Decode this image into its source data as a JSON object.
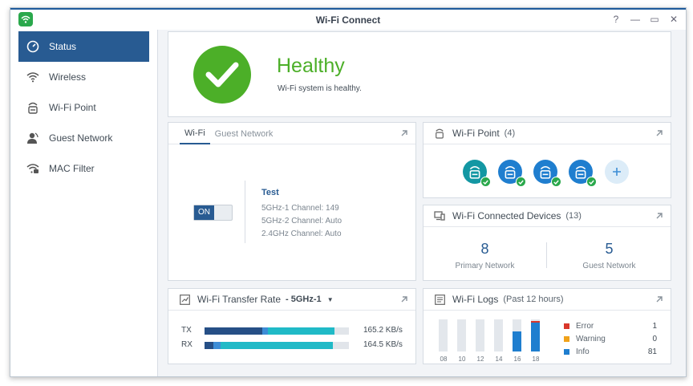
{
  "window": {
    "title": "Wi-Fi Connect"
  },
  "sidebar": {
    "items": [
      {
        "label": "Status"
      },
      {
        "label": "Wireless"
      },
      {
        "label": "Wi-Fi Point"
      },
      {
        "label": "Guest Network"
      },
      {
        "label": "MAC Filter"
      }
    ]
  },
  "health": {
    "title": "Healthy",
    "message": "Wi-Fi system is healthy."
  },
  "wifi_card": {
    "tabs": [
      "Wi-Fi",
      "Guest Network"
    ],
    "toggle": "ON",
    "ssid": "Test",
    "channels": [
      {
        "label": "5GHz-1 Channel:",
        "value": "149"
      },
      {
        "label": "5GHz-2 Channel:",
        "value": "Auto"
      },
      {
        "label": "2.4GHz Channel:",
        "value": "Auto"
      }
    ]
  },
  "wifi_point": {
    "title": "Wi-Fi Point",
    "count": "(4)",
    "points": 4,
    "colors": [
      "#1397a3",
      "#1f7ecf",
      "#1f7ecf",
      "#1f7ecf"
    ]
  },
  "devices": {
    "title": "Wi-Fi Connected Devices",
    "count": "(13)",
    "primary": {
      "value": "8",
      "label": "Primary Network"
    },
    "guest": {
      "value": "5",
      "label": "Guest Network"
    }
  },
  "transfer": {
    "title": "Wi-Fi Transfer Rate",
    "band": "- 5GHz-1",
    "rows": [
      {
        "label": "TX",
        "value": "165.2 KB/s",
        "segments": [
          {
            "frac": 0.4,
            "color": "#264f86"
          },
          {
            "frac": 0.04,
            "color": "#3d8dd6"
          },
          {
            "frac": 0.46,
            "color": "#20bac7"
          }
        ]
      },
      {
        "label": "RX",
        "value": "164.5 KB/s",
        "segments": [
          {
            "frac": 0.06,
            "color": "#264f86"
          },
          {
            "frac": 0.05,
            "color": "#3d8dd6"
          },
          {
            "frac": 0.78,
            "color": "#20bac7"
          }
        ]
      }
    ]
  },
  "logs": {
    "title": "Wi-Fi Logs",
    "range": "(Past 12 hours)",
    "hours": [
      "08",
      "10",
      "12",
      "14",
      "16",
      "18"
    ],
    "info_fraction": [
      0,
      0,
      0,
      0,
      0.62,
      0.95
    ],
    "error_marker": [
      false,
      false,
      false,
      false,
      false,
      true
    ],
    "legend": [
      {
        "label": "Error",
        "count": "1",
        "color": "#d9372b"
      },
      {
        "label": "Warning",
        "count": "0",
        "color": "#f0a21a"
      },
      {
        "label": "Info",
        "count": "81",
        "color": "#1f7ecf"
      }
    ]
  },
  "colors": {
    "accent": "#285b92",
    "healthy": "#4caf28"
  }
}
